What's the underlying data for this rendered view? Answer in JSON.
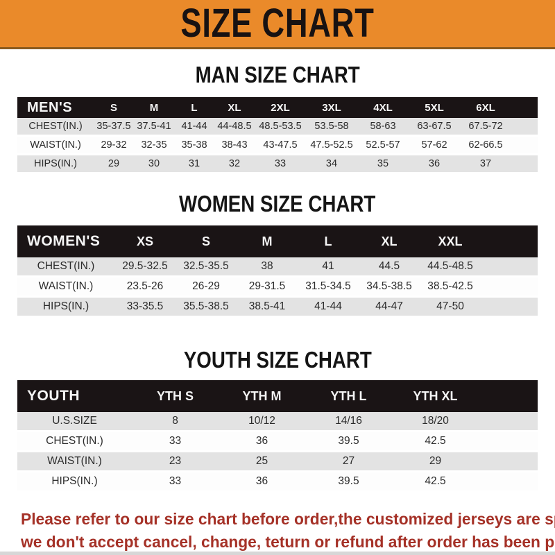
{
  "banner": {
    "title": "SIZE CHART",
    "bg_color": "#EA8A2A",
    "text_color": "#181212"
  },
  "sections": [
    {
      "heading": "MAN SIZE CHART",
      "table": {
        "label": "MEN'S",
        "columns": [
          "S",
          "M",
          "L",
          "XL",
          "2XL",
          "3XL",
          "4XL",
          "5XL",
          "6XL"
        ],
        "rows": [
          {
            "label": "CHEST(IN.)",
            "cells": [
              "35-37.5",
              "37.5-41",
              "41-44",
              "44-48.5",
              "48.5-53.5",
              "53.5-58",
              "58-63",
              "63-67.5",
              "67.5-72"
            ]
          },
          {
            "label": "WAIST(IN.)",
            "cells": [
              "29-32",
              "32-35",
              "35-38",
              "38-43",
              "43-47.5",
              "47.5-52.5",
              "52.5-57",
              "57-62",
              "62-66.5"
            ]
          },
          {
            "label": "HIPS(IN.)",
            "cells": [
              "29",
              "30",
              "31",
              "32",
              "33",
              "34",
              "35",
              "36",
              "37"
            ]
          }
        ]
      }
    },
    {
      "heading": "WOMEN SIZE CHART",
      "table": {
        "label": "WOMEN'S",
        "columns": [
          "XS",
          "S",
          "M",
          "L",
          "XL",
          "XXL"
        ],
        "rows": [
          {
            "label": "CHEST(IN.)",
            "cells": [
              "29.5-32.5",
              "32.5-35.5",
              "38",
              "41",
              "44.5",
              "44.5-48.5"
            ]
          },
          {
            "label": "WAIST(IN.)",
            "cells": [
              "23.5-26",
              "26-29",
              "29-31.5",
              "31.5-34.5",
              "34.5-38.5",
              "38.5-42.5"
            ]
          },
          {
            "label": "HIPS(IN.)",
            "cells": [
              "33-35.5",
              "35.5-38.5",
              "38.5-41",
              "41-44",
              "44-47",
              "47-50"
            ]
          }
        ]
      }
    },
    {
      "heading": "YOUTH SIZE CHART",
      "table": {
        "label": "YOUTH",
        "columns": [
          "YTH S",
          "YTH M",
          "YTH L",
          "YTH XL"
        ],
        "rows": [
          {
            "label": "U.S.SIZE",
            "cells": [
              "8",
              "10/12",
              "14/16",
              "18/20"
            ]
          },
          {
            "label": "CHEST(IN.)",
            "cells": [
              "33",
              "36",
              "39.5",
              "42.5"
            ]
          },
          {
            "label": "WAIST(IN.)",
            "cells": [
              "23",
              "25",
              "27",
              "29"
            ]
          },
          {
            "label": "HIPS(IN.)",
            "cells": [
              "33",
              "36",
              "39.5",
              "42.5"
            ]
          }
        ]
      }
    }
  ],
  "footer": {
    "lines": [
      "Please refer to our size chart before order,the customized jerseys are special products,",
      "we don't accept cancel, change, teturn or refund after order has been placed!"
    ],
    "text_color": "#A53127"
  },
  "colors": {
    "header_bar": "#1A1415",
    "row_stripe": "#E3E3E3",
    "banner_orange": "#EA8A2A",
    "footer_red": "#A53127"
  }
}
